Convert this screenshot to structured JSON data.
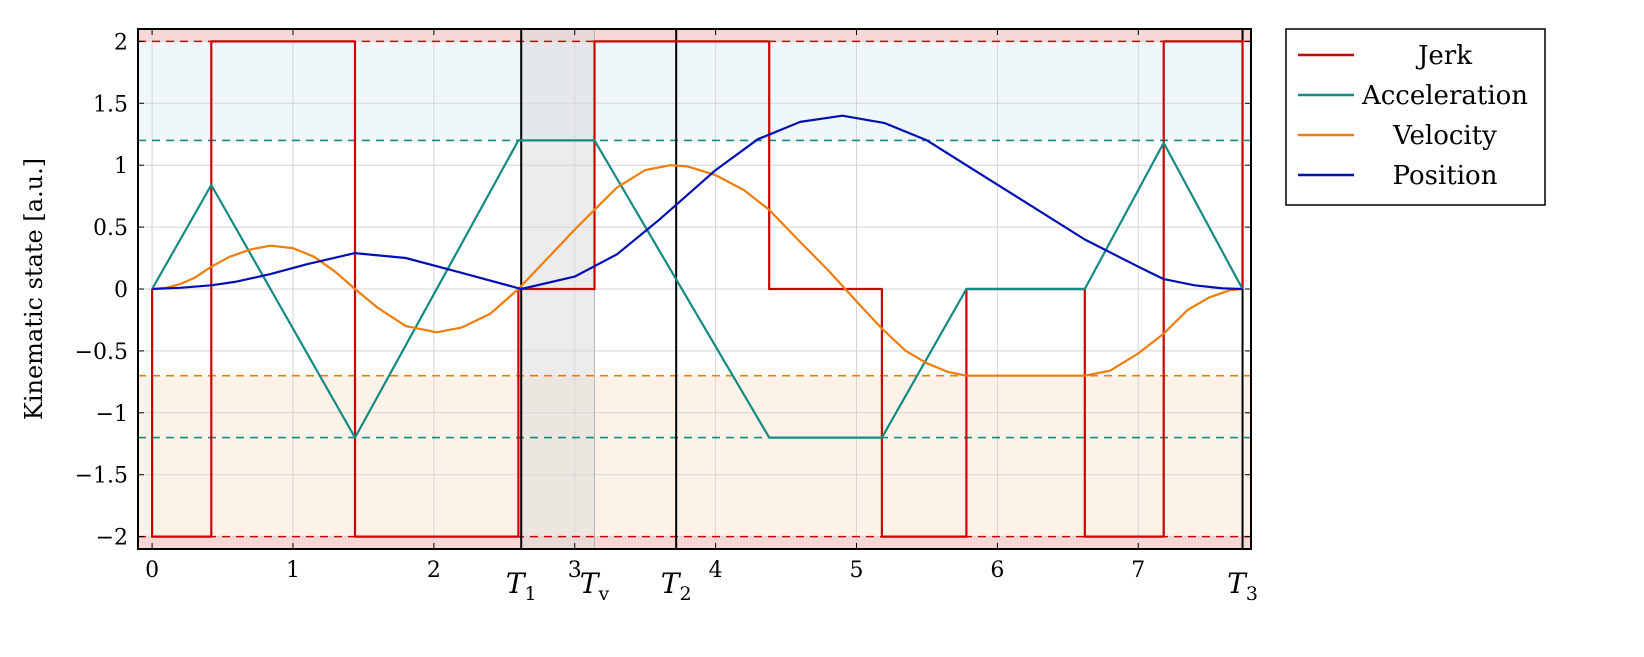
{
  "chart_data": {
    "type": "line",
    "title": "",
    "xlabel": "",
    "ylabel": "Kinematic state [a.u.]",
    "xlim": [
      -0.1,
      7.8
    ],
    "ylim": [
      -2.1,
      2.1
    ],
    "grid": true,
    "legend_position": "outside-right-top",
    "x_ticks": [
      0,
      1,
      2,
      3,
      4,
      5,
      6,
      7
    ],
    "x_tick_labels": [
      "0",
      "1",
      "2",
      "3",
      "4",
      "5",
      "6",
      "7"
    ],
    "y_ticks": [
      -2,
      -1.5,
      -1,
      -0.5,
      0,
      0.5,
      1,
      1.5,
      2
    ],
    "y_tick_labels": [
      "−2",
      "−1.5",
      "−1",
      "−0.5",
      "0",
      "0.5",
      "1",
      "1.5",
      "2"
    ],
    "markers": [
      {
        "base": "T",
        "sub": "1",
        "x": 2.62
      },
      {
        "base": "T",
        "sub": "v",
        "x": 3.14
      },
      {
        "base": "T",
        "sub": "2",
        "x": 3.72
      },
      {
        "base": "T",
        "sub": "3",
        "x": 7.74
      }
    ],
    "vertical_lines": [
      2.62,
      3.72,
      7.74
    ],
    "shaded_interval": [
      2.62,
      3.14
    ],
    "limits": [
      {
        "series": "Jerk",
        "values": [
          2,
          -2
        ]
      },
      {
        "series": "Acceleration",
        "values": [
          1.2,
          -1.2
        ]
      },
      {
        "series": "Velocity",
        "values": [
          -0.7
        ]
      }
    ],
    "series": [
      {
        "name": "Jerk",
        "color": "#cc0000",
        "x": [
          0,
          0,
          0.42,
          0.42,
          1.44,
          1.44,
          2.6,
          2.6,
          3.14,
          3.14,
          4.38,
          4.38,
          5.18,
          5.18,
          5.78,
          5.78,
          6.62,
          6.62,
          7.18,
          7.18,
          7.74,
          7.74
        ],
        "y": [
          0,
          -2,
          -2,
          2,
          2,
          -2,
          -2,
          0,
          0,
          2,
          2,
          0,
          0,
          -2,
          -2,
          0,
          0,
          -2,
          -2,
          2,
          2,
          0
        ]
      },
      {
        "name": "Acceleration",
        "color": "#138a82",
        "x": [
          0,
          0.42,
          1.44,
          2.6,
          3.14,
          4.38,
          5.18,
          5.78,
          6.62,
          7.18,
          7.74
        ],
        "y": [
          0,
          0.84,
          -1.2,
          1.2,
          1.2,
          -1.2,
          -1.2,
          0,
          0,
          1.18,
          0
        ]
      },
      {
        "name": "Velocity",
        "color": "#f07d0a",
        "x": [
          0,
          0.1,
          0.2,
          0.3,
          0.42,
          0.55,
          0.7,
          0.84,
          1.0,
          1.15,
          1.3,
          1.44,
          1.6,
          1.8,
          2.02,
          2.2,
          2.4,
          2.6,
          2.8,
          3.0,
          3.14,
          3.3,
          3.5,
          3.68,
          3.8,
          4.0,
          4.2,
          4.38,
          4.6,
          4.8,
          5.0,
          5.18,
          5.35,
          5.5,
          5.65,
          5.78,
          6.0,
          6.3,
          6.62,
          6.8,
          7.0,
          7.18,
          7.35,
          7.5,
          7.65,
          7.74
        ],
        "y": [
          0,
          0.01,
          0.04,
          0.09,
          0.18,
          0.26,
          0.32,
          0.35,
          0.33,
          0.26,
          0.14,
          0.0,
          -0.15,
          -0.3,
          -0.35,
          -0.31,
          -0.2,
          0.0,
          0.24,
          0.48,
          0.64,
          0.82,
          0.96,
          1.0,
          0.99,
          0.92,
          0.8,
          0.64,
          0.38,
          0.15,
          -0.1,
          -0.32,
          -0.5,
          -0.6,
          -0.67,
          -0.7,
          -0.7,
          -0.7,
          -0.7,
          -0.66,
          -0.52,
          -0.36,
          -0.17,
          -0.07,
          -0.01,
          0
        ]
      },
      {
        "name": "Position",
        "color": "#0010b4",
        "x": [
          0,
          0.2,
          0.42,
          0.6,
          0.84,
          1.1,
          1.44,
          1.8,
          2.2,
          2.62,
          3.0,
          3.3,
          3.6,
          4.0,
          4.3,
          4.6,
          4.9,
          5.2,
          5.5,
          5.78,
          6.2,
          6.62,
          7.0,
          7.18,
          7.4,
          7.6,
          7.74
        ],
        "y": [
          0,
          0.01,
          0.03,
          0.06,
          0.12,
          0.2,
          0.29,
          0.25,
          0.13,
          0.0,
          0.1,
          0.28,
          0.56,
          0.96,
          1.21,
          1.35,
          1.4,
          1.34,
          1.2,
          1.0,
          0.7,
          0.4,
          0.18,
          0.08,
          0.03,
          0.005,
          0
        ]
      }
    ]
  }
}
